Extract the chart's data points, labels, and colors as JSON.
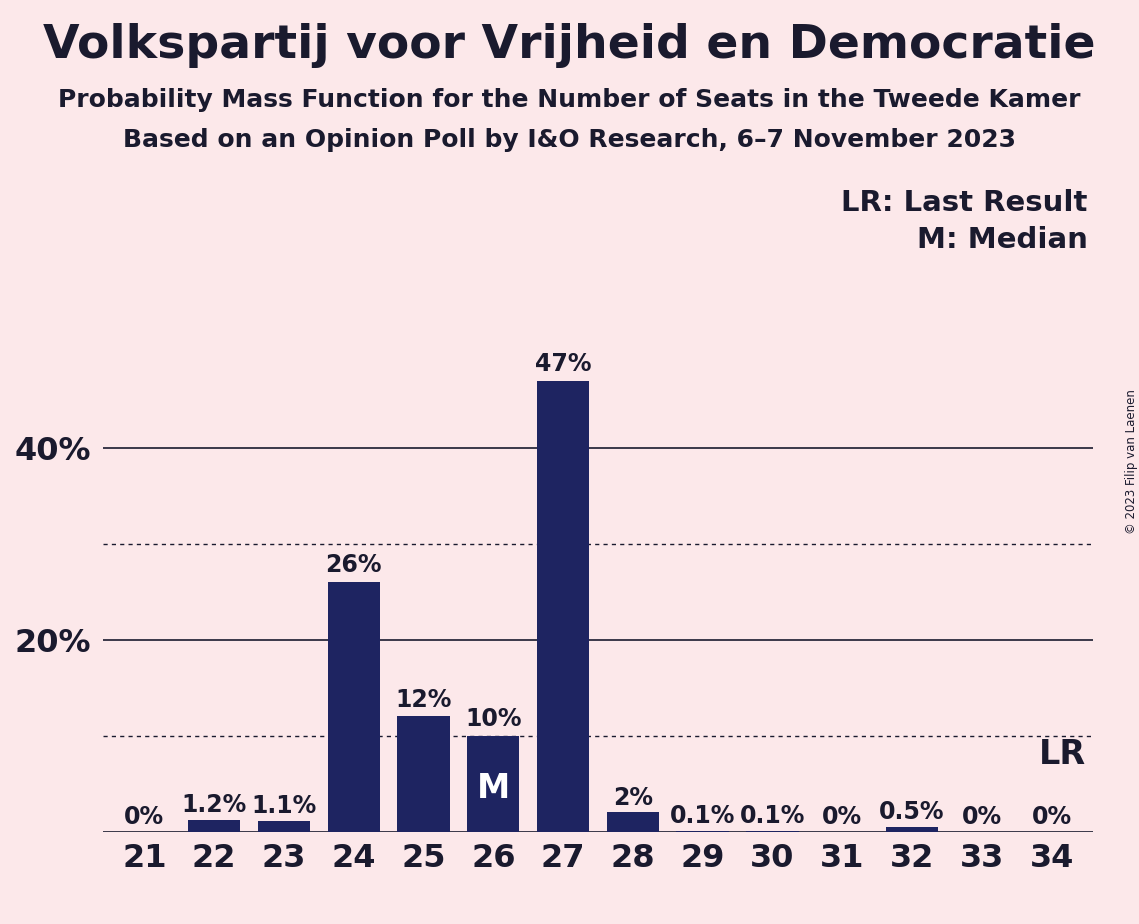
{
  "title": "Volkspartij voor Vrijheid en Democratie",
  "subtitle1": "Probability Mass Function for the Number of Seats in the Tweede Kamer",
  "subtitle2": "Based on an Opinion Poll by I&O Research, 6–7 November 2023",
  "copyright": "© 2023 Filip van Laenen",
  "categories": [
    21,
    22,
    23,
    24,
    25,
    26,
    27,
    28,
    29,
    30,
    31,
    32,
    33,
    34
  ],
  "values": [
    0.0,
    1.2,
    1.1,
    26.0,
    12.0,
    10.0,
    47.0,
    2.0,
    0.1,
    0.1,
    0.0,
    0.5,
    0.0,
    0.0
  ],
  "labels": [
    "0%",
    "1.2%",
    "1.1%",
    "26%",
    "12%",
    "10%",
    "47%",
    "2%",
    "0.1%",
    "0.1%",
    "0%",
    "0.5%",
    "0%",
    "0%"
  ],
  "bar_color": "#1e2461",
  "background_color": "#fce8ea",
  "text_color": "#1a1a2e",
  "median_bar": 26,
  "lr_bar": 34,
  "legend_lr": "LR: Last Result",
  "legend_m": "M: Median",
  "ylim": [
    0,
    52
  ],
  "yticks": [
    0,
    20,
    40
  ],
  "ytick_labels": [
    "",
    "20%",
    "40%"
  ],
  "solid_lines": [
    0,
    20,
    40
  ],
  "dotted_lines": [
    10,
    30
  ],
  "title_fontsize": 34,
  "subtitle_fontsize": 18,
  "tick_fontsize": 23,
  "legend_fontsize": 21,
  "bar_label_fontsize": 17,
  "median_label_fontsize": 24,
  "lr_label_fontsize": 24,
  "bar_width": 0.75
}
